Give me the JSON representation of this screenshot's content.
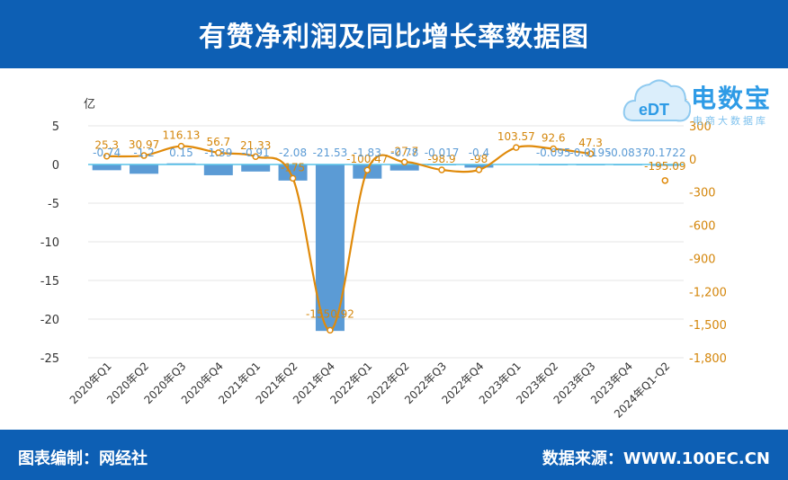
{
  "header": {
    "title": "有赞净利润及同比增长率数据图"
  },
  "footer": {
    "left": "图表编制：网经社",
    "right": "数据来源：WWW.100EC.CN"
  },
  "logo": {
    "brand": "电数宝",
    "sub": "电商大数据库"
  },
  "colors": {
    "header_bg": "#0d5fb4",
    "bar": "#5b9bd5",
    "line": "#e08a0a",
    "bar_label": "#5b9bd5",
    "line_label": "#d4860b"
  },
  "chart_data": {
    "type": "bar",
    "title": "",
    "categories": [
      "2020年Q1",
      "2020年Q2",
      "2020年Q3",
      "2020年Q4",
      "2021年Q1",
      "2021年Q2",
      "2021年Q4",
      "2022年Q1",
      "2022年Q2",
      "2022年Q3",
      "2022年Q4",
      "2023年Q1",
      "2023年Q2",
      "2023年Q3",
      "2023年Q4",
      "2024年Q1-Q2"
    ],
    "left_axis": {
      "unit": "亿",
      "ylim": [
        -25,
        5
      ],
      "ticks": [
        5,
        0,
        -5,
        -10,
        -15,
        -20,
        -25
      ]
    },
    "right_axis": {
      "unit": "%",
      "ylim": [
        -1800,
        300
      ],
      "ticks": [
        300,
        0,
        -300,
        -600,
        -900,
        -1200,
        -1500,
        -1800
      ],
      "tick_labels": [
        "300",
        "0",
        "-300",
        "-600",
        "-900",
        "-1,200",
        "-1,500",
        "-1,800"
      ]
    },
    "series": [
      {
        "type": "bar",
        "axis": "left",
        "values": [
          -0.74,
          -1.2,
          0.15,
          -1.39,
          -0.91,
          -2.08,
          -21.53,
          -1.83,
          -0.78,
          -0.017,
          -0.4,
          null,
          -0.095,
          -0.0195,
          -0.0837,
          -0.1722
        ],
        "labels": [
          "-0.74",
          "-1.2",
          "0.15",
          "-1.39",
          "-0.91",
          "-2.08",
          "-21.53",
          "-1.83",
          "-0.78",
          "-0.017",
          "-0.4",
          "",
          "-0.095",
          "-0.0195",
          "-0.0837",
          "-0.1722"
        ]
      },
      {
        "type": "line",
        "axis": "right",
        "values": [
          25.3,
          30.97,
          116.13,
          56.7,
          21.33,
          -175,
          -1550.92,
          -100.47,
          -27.7,
          -98.9,
          -98,
          103.57,
          92.6,
          47.3,
          null,
          -195.09
        ],
        "labels": [
          "25.3",
          "30.97",
          "116.13",
          "56.7",
          "21.33",
          "-175",
          "-1550.92",
          "-100.47",
          "-27.7",
          "-98.9",
          "-98",
          "103.57",
          "92.6",
          "47.3",
          "",
          "-195.09"
        ]
      }
    ],
    "grid": true
  }
}
